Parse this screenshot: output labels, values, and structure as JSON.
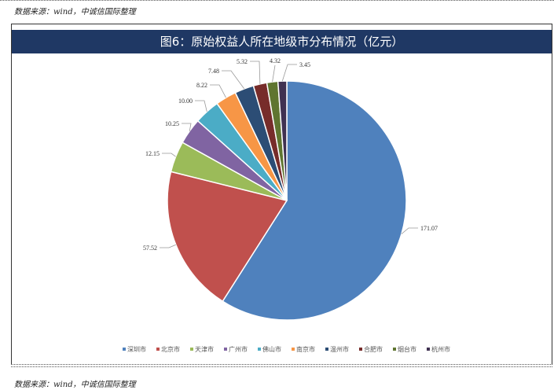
{
  "source_note": "数据来源：wind，中诚信国际整理",
  "chart_data": {
    "type": "pie",
    "title": "图6：原始权益人所在地级市分布情况（亿元）",
    "categories": [
      "深圳市",
      "北京市",
      "天津市",
      "广州市",
      "佛山市",
      "南京市",
      "温州市",
      "合肥市",
      "烟台市",
      "杭州市"
    ],
    "values": [
      171.07,
      57.52,
      12.15,
      10.25,
      10.0,
      8.22,
      7.48,
      5.32,
      4.32,
      3.45
    ],
    "value_labels": [
      "171.07",
      "57.52",
      "12.15",
      "10.25",
      "10.00",
      "8.22",
      "7.48",
      "5.32",
      "4.32",
      "3.45"
    ],
    "colors": [
      "#4f81bd",
      "#c0504d",
      "#9bbb59",
      "#8064a2",
      "#4bacc6",
      "#f79646",
      "#2c4d75",
      "#772c2a",
      "#5f7530",
      "#403151"
    ],
    "legend_position": "bottom",
    "start_angle": "12 o'clock",
    "direction": "clockwise"
  }
}
